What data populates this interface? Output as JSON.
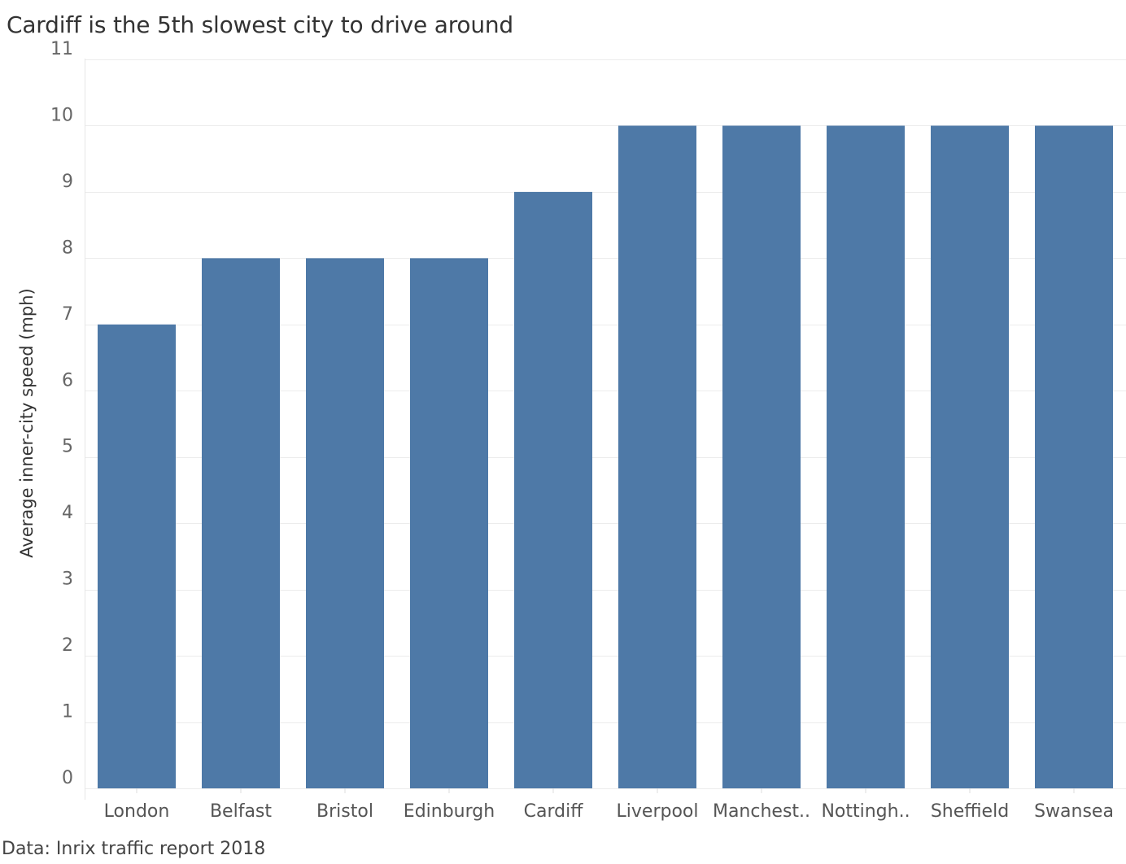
{
  "chart_data": {
    "type": "bar",
    "title": "Cardiff is the 5th slowest city to drive around",
    "xlabel": "",
    "ylabel": "Average inner-city speed (mph)",
    "categories": [
      "London",
      "Belfast",
      "Bristol",
      "Edinburgh",
      "Cardiff",
      "Liverpool",
      "Manchest..",
      "Nottingh..",
      "Sheffield",
      "Swansea"
    ],
    "values": [
      7,
      8,
      8,
      8,
      9,
      10,
      10,
      10,
      10,
      10
    ],
    "yticks": [
      "0",
      "1",
      "2",
      "3",
      "4",
      "5",
      "6",
      "7",
      "8",
      "9",
      "10",
      "11"
    ],
    "ylim": [
      0,
      11
    ],
    "grid": true,
    "bar_color": "#4e79a7",
    "source": "Data: Inrix traffic report 2018"
  }
}
